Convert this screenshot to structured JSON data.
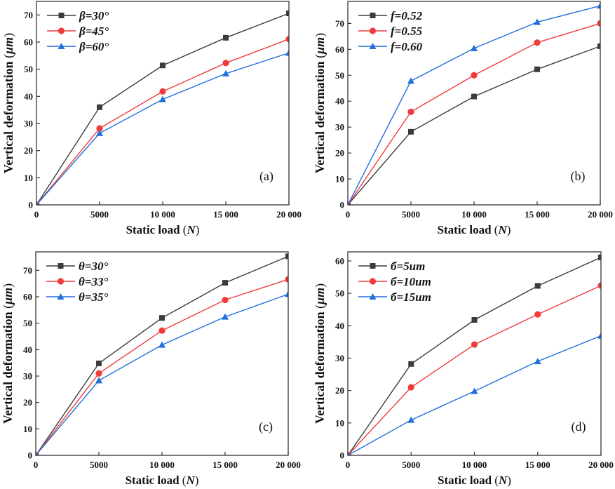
{
  "figure": {
    "series_colors": {
      "black": "#3c3c3c",
      "red": "#ef3b3b",
      "blue": "#1f6fdc"
    }
  },
  "chart_data": [
    {
      "id": "a",
      "type": "line",
      "panel_label": "(a)",
      "xlabel": "Static load",
      "xlabel_unit": "N",
      "ylabel": "Vertical deformation",
      "ylabel_unit": "μm",
      "x": [
        0,
        5000,
        10000,
        15000,
        20000
      ],
      "xticks": [
        0,
        5000,
        10000,
        15000,
        20000
      ],
      "xtick_labels": [
        "0",
        "5000",
        "10 000",
        "15 000",
        "20 000"
      ],
      "yticks": [
        0,
        10,
        20,
        30,
        40,
        50,
        60,
        70
      ],
      "xlim": [
        0,
        20000
      ],
      "ylim": [
        0,
        75
      ],
      "grid": false,
      "legend_position": "top-left",
      "series": [
        {
          "name": "β=30°",
          "color": "#3c3c3c",
          "marker": "square",
          "values": [
            0,
            36.0,
            51.4,
            61.6,
            70.6
          ]
        },
        {
          "name": "β=45°",
          "color": "#ef3b3b",
          "marker": "circle",
          "values": [
            0,
            28.2,
            41.8,
            52.3,
            61.1
          ]
        },
        {
          "name": "β=60°",
          "color": "#1f6fdc",
          "marker": "triangle",
          "values": [
            0,
            26.4,
            38.9,
            48.4,
            56.0
          ]
        }
      ]
    },
    {
      "id": "b",
      "type": "line",
      "panel_label": "(b)",
      "xlabel": "Static load",
      "xlabel_unit": "N",
      "ylabel": "Vertical deformation",
      "ylabel_unit": "μm",
      "x": [
        0,
        5000,
        10000,
        15000,
        20000
      ],
      "xticks": [
        0,
        5000,
        10000,
        15000,
        20000
      ],
      "xtick_labels": [
        "0",
        "5000",
        "10 000",
        "15 000",
        "20 000"
      ],
      "yticks": [
        0,
        10,
        20,
        30,
        40,
        50,
        60,
        70
      ],
      "xlim": [
        0,
        20000
      ],
      "ylim": [
        0,
        78.5
      ],
      "grid": false,
      "legend_position": "top-left",
      "series": [
        {
          "name": "f=0.52",
          "color": "#3c3c3c",
          "marker": "square",
          "values": [
            0,
            28.2,
            41.8,
            52.3,
            61.2
          ]
        },
        {
          "name": "f=0.55",
          "color": "#ef3b3b",
          "marker": "circle",
          "values": [
            0,
            35.9,
            50.0,
            62.6,
            70.0
          ]
        },
        {
          "name": "f=0.60",
          "color": "#1f6fdc",
          "marker": "triangle",
          "values": [
            0,
            47.8,
            60.4,
            70.5,
            76.8
          ]
        }
      ]
    },
    {
      "id": "c",
      "type": "line",
      "panel_label": "(c)",
      "xlabel": "Static load",
      "xlabel_unit": "N",
      "ylabel": "Vertical deformation",
      "ylabel_unit": "μm",
      "x": [
        0,
        5000,
        10000,
        15000,
        20000
      ],
      "xticks": [
        0,
        5000,
        10000,
        15000,
        20000
      ],
      "xtick_labels": [
        "0",
        "5000",
        "10 000",
        "15 000",
        "20 000"
      ],
      "yticks": [
        0,
        10,
        20,
        30,
        40,
        50,
        60,
        70
      ],
      "xlim": [
        0,
        20000
      ],
      "ylim": [
        0,
        77
      ],
      "grid": false,
      "legend_position": "top-left",
      "series": [
        {
          "name": "θ=30°",
          "color": "#3c3c3c",
          "marker": "square",
          "values": [
            0,
            34.8,
            52.0,
            65.3,
            75.3
          ]
        },
        {
          "name": "θ=33°",
          "color": "#ef3b3b",
          "marker": "circle",
          "values": [
            0,
            31.0,
            47.2,
            58.8,
            66.6
          ]
        },
        {
          "name": "θ=35°",
          "color": "#1f6fdc",
          "marker": "triangle",
          "values": [
            0,
            28.3,
            41.8,
            52.4,
            61.0
          ]
        }
      ]
    },
    {
      "id": "d",
      "type": "line",
      "panel_label": "(d)",
      "xlabel": "Static load",
      "xlabel_unit": "N",
      "ylabel": "Vertical deformation",
      "ylabel_unit": "μm",
      "x": [
        0,
        5000,
        10000,
        15000,
        20000
      ],
      "xticks": [
        0,
        5000,
        10000,
        15000,
        20000
      ],
      "xtick_labels": [
        "0",
        "5000",
        "10 000",
        "15 000",
        "20 000"
      ],
      "yticks": [
        0,
        10,
        20,
        30,
        40,
        50,
        60
      ],
      "xlim": [
        0,
        20000
      ],
      "ylim": [
        0,
        62.8
      ],
      "grid": false,
      "legend_position": "top-left",
      "series": [
        {
          "name": "б=5um",
          "color": "#3c3c3c",
          "marker": "square",
          "values": [
            0,
            28.2,
            41.8,
            52.3,
            61.1
          ]
        },
        {
          "name": "б=10um",
          "color": "#ef3b3b",
          "marker": "circle",
          "values": [
            0,
            21.0,
            34.2,
            43.5,
            52.4
          ]
        },
        {
          "name": "б=15um",
          "color": "#1f6fdc",
          "marker": "triangle",
          "values": [
            0,
            10.9,
            19.8,
            29.0,
            36.9
          ]
        }
      ]
    }
  ]
}
